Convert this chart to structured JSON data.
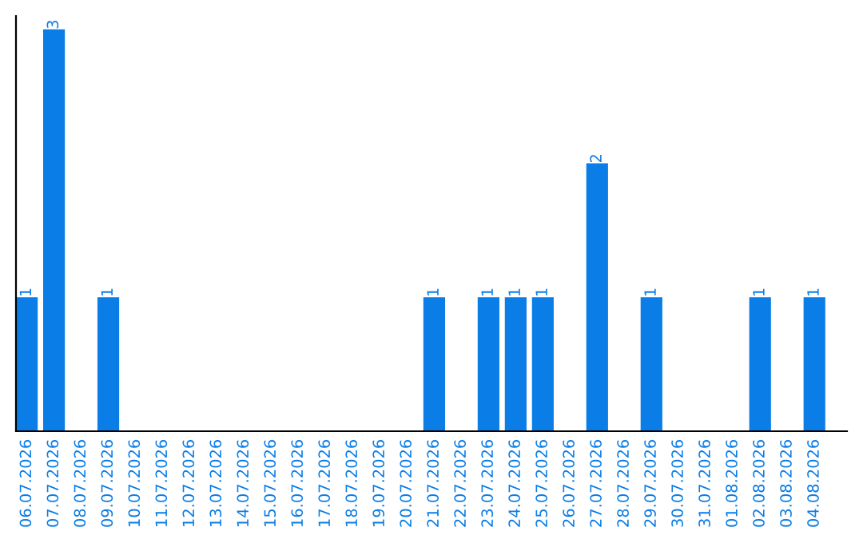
{
  "chart_data": {
    "type": "bar",
    "categories": [
      "06.07.2026",
      "07.07.2026",
      "08.07.2026",
      "09.07.2026",
      "10.07.2026",
      "11.07.2026",
      "12.07.2026",
      "13.07.2026",
      "14.07.2026",
      "15.07.2026",
      "16.07.2026",
      "17.07.2026",
      "18.07.2026",
      "19.07.2026",
      "20.07.2026",
      "21.07.2026",
      "22.07.2026",
      "23.07.2026",
      "24.07.2026",
      "25.07.2026",
      "26.07.2026",
      "27.07.2026",
      "28.07.2026",
      "29.07.2026",
      "30.07.2026",
      "31.07.2026",
      "01.08.2026",
      "02.08.2026",
      "03.08.2026",
      "04.08.2026"
    ],
    "values": [
      1,
      3,
      0,
      1,
      0,
      0,
      0,
      0,
      0,
      0,
      0,
      0,
      0,
      0,
      0,
      1,
      0,
      1,
      1,
      1,
      0,
      2,
      0,
      1,
      0,
      0,
      0,
      1,
      0,
      1
    ],
    "value_labels": [
      "1",
      "3",
      null,
      "1",
      null,
      null,
      null,
      null,
      null,
      null,
      null,
      null,
      null,
      null,
      null,
      "1",
      null,
      "1",
      "1",
      "1",
      null,
      "2",
      null,
      "1",
      null,
      null,
      null,
      "1",
      null,
      "1"
    ],
    "color": "#0a7de6",
    "ylim": [
      0,
      3.1
    ],
    "tick_labels": "x",
    "grid": false,
    "legend": false
  }
}
